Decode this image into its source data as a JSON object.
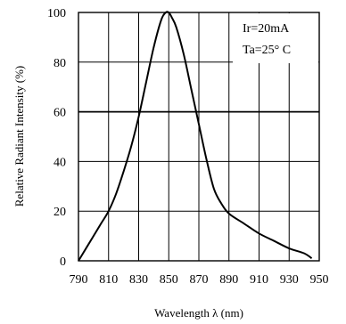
{
  "chart_data": {
    "type": "line",
    "xlabel": "Wavelength λ (nm)",
    "ylabel": "Relative Radiant Intensity (%)",
    "xlim": [
      790,
      950
    ],
    "ylim": [
      0,
      100
    ],
    "x_ticks": [
      790,
      810,
      830,
      850,
      870,
      890,
      910,
      930,
      950
    ],
    "y_ticks": [
      0,
      20,
      40,
      60,
      80,
      100
    ],
    "grid": true,
    "annotations": [
      "Ir=20mA",
      "Ta=25° C"
    ],
    "series": [
      {
        "x": [
          790,
          795,
          800,
          805,
          810,
          815,
          820,
          825,
          830,
          835,
          840,
          845,
          848,
          850,
          852,
          855,
          860,
          865,
          870,
          875,
          880,
          885,
          890,
          900,
          910,
          920,
          930,
          940,
          945
        ],
        "y": [
          0,
          5,
          10,
          15,
          20,
          27,
          36,
          46,
          58,
          72,
          86,
          97,
          100,
          100,
          98,
          94,
          83,
          69,
          55,
          41,
          29,
          23,
          19,
          15,
          11,
          8,
          5,
          3,
          1
        ]
      }
    ]
  }
}
